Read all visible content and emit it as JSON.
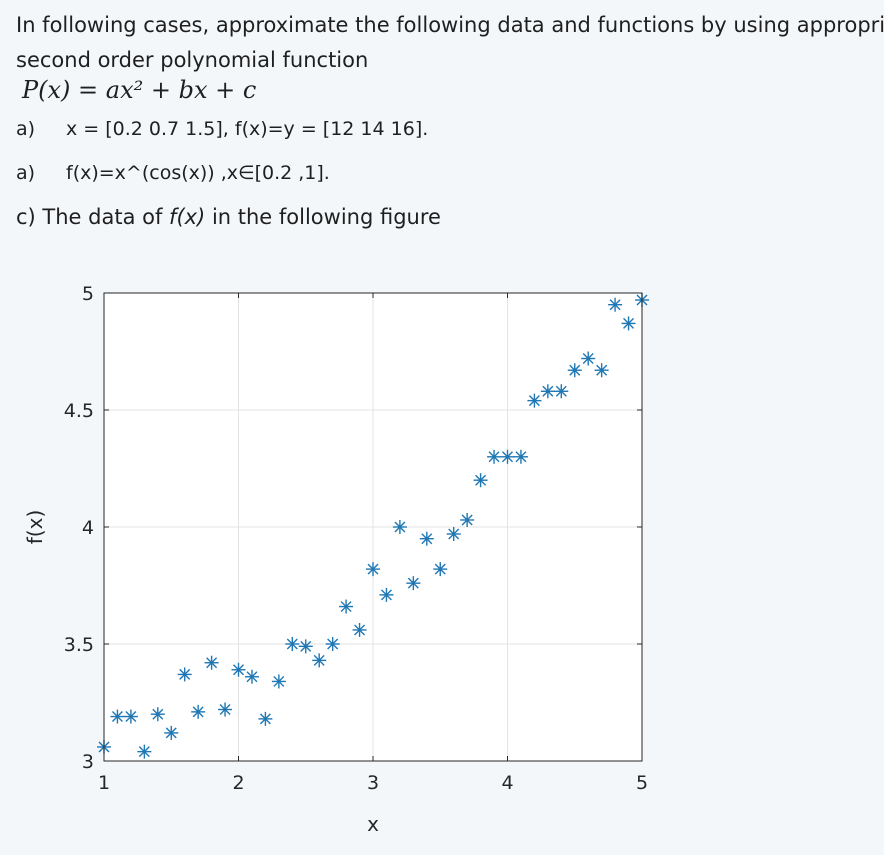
{
  "question": {
    "intro_line1": "In following cases, approximate the following data and functions by using appropriate",
    "intro_line2": "second order polynomial function",
    "formula": "P(x) = ax² + bx + c",
    "items": [
      {
        "label": "a)",
        "text": "x = [0.2 0.7 1.5],  f(x)=y = [12 14 16]."
      },
      {
        "label": "a)",
        "text": "f(x)=x^(cos(x)) ,x∈[0.2 ,1]."
      }
    ],
    "item_c_prefix": "c) The data of ",
    "item_c_fx": "f(x)",
    "item_c_suffix": " in the following figure"
  },
  "chart_data": {
    "type": "scatter",
    "xlabel": "x",
    "ylabel": "f(x)",
    "xlim": [
      1,
      5
    ],
    "ylim": [
      3,
      5
    ],
    "xticks": [
      1,
      2,
      3,
      4,
      5
    ],
    "yticks": [
      3,
      3.5,
      4,
      4.5,
      5
    ],
    "xtick_labels": [
      "1",
      "2",
      "3",
      "4",
      "5"
    ],
    "ytick_labels": [
      "3",
      "3.5",
      "4",
      "4.5",
      "5"
    ],
    "grid": true,
    "marker": "asterisk",
    "marker_color": "#1f77b4",
    "x": [
      1.0,
      1.1,
      1.2,
      1.3,
      1.4,
      1.5,
      1.6,
      1.7,
      1.8,
      1.9,
      2.0,
      2.1,
      2.2,
      2.3,
      2.4,
      2.5,
      2.6,
      2.7,
      2.8,
      2.9,
      3.0,
      3.1,
      3.2,
      3.3,
      3.4,
      3.5,
      3.6,
      3.7,
      3.8,
      3.9,
      4.0,
      4.1,
      4.2,
      4.3,
      4.4,
      4.5,
      4.6,
      4.7,
      4.8,
      4.9,
      5.0
    ],
    "y": [
      3.06,
      3.19,
      3.19,
      3.04,
      3.2,
      3.12,
      3.37,
      3.21,
      3.42,
      3.22,
      3.39,
      3.36,
      3.18,
      3.34,
      3.5,
      3.49,
      3.43,
      3.5,
      3.66,
      3.56,
      3.82,
      3.71,
      4.0,
      3.76,
      3.95,
      3.82,
      3.97,
      4.03,
      4.2,
      4.3,
      4.3,
      4.3,
      4.54,
      4.58,
      4.58,
      4.67,
      4.72,
      4.67,
      4.95,
      4.87,
      4.97
    ]
  }
}
